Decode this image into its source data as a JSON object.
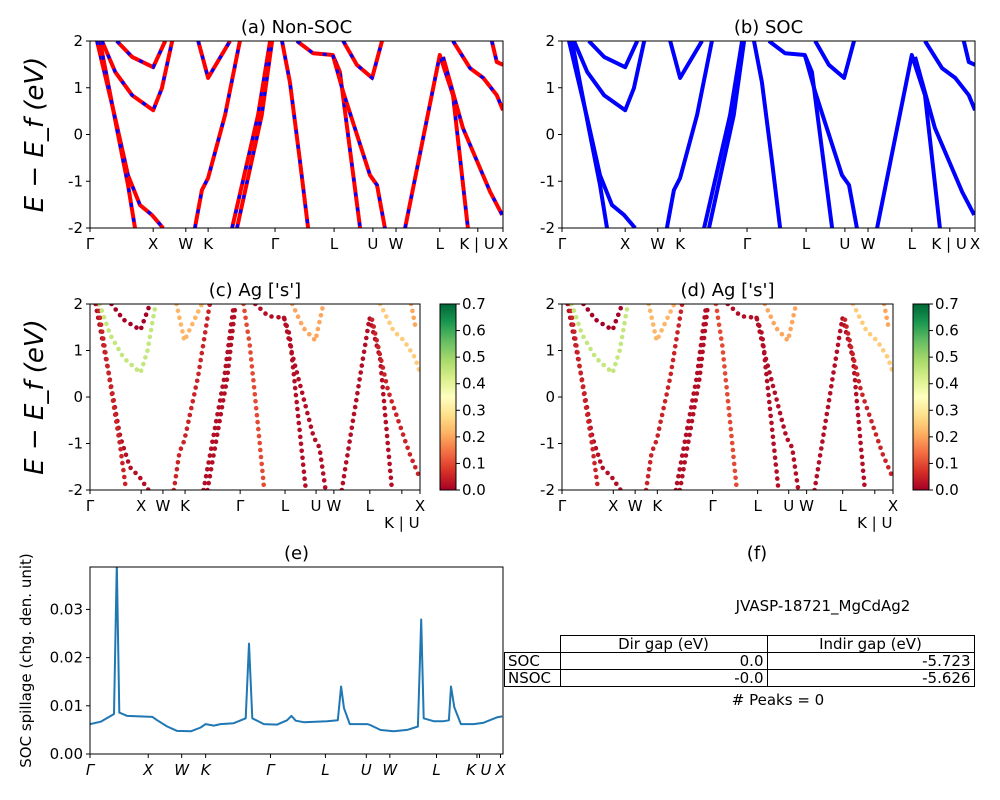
{
  "chart_data": [
    {
      "panel": "a",
      "type": "line",
      "title": "(a) Non-SOC",
      "ylabel": "E − E_f (eV)",
      "ylim": [
        -2,
        2
      ],
      "yticks": [
        "-2",
        "-1",
        "0",
        "1",
        "2"
      ],
      "ytick_values": [
        -2,
        -1,
        0,
        1,
        2
      ],
      "xticks": [
        {
          "label": "Γ",
          "k": 0
        },
        {
          "label": "X",
          "k": 0.153
        },
        {
          "label": "W",
          "k": 0.232
        },
        {
          "label": "K",
          "k": 0.286
        },
        {
          "label": "Γ",
          "k": 0.448
        },
        {
          "label": "L",
          "k": 0.591
        },
        {
          "label": "U",
          "k": 0.685
        },
        {
          "label": "W",
          "k": 0.741
        },
        {
          "label": "L",
          "k": 0.847
        },
        {
          "label": "K | U",
          "k": 0.939
        },
        {
          "label": "X",
          "k": 1.0
        }
      ],
      "colors": {
        "line": "#ff0000",
        "dash": "#0000ff"
      },
      "bands": [
        [
          [
            0.017,
            2
          ],
          [
            0.061,
            0.35
          ],
          [
            0.092,
            -0.87
          ],
          [
            0.121,
            -1.51
          ],
          [
            0.15,
            -1.72
          ],
          [
            0.177,
            -2
          ]
        ],
        [
          [
            0.024,
            2
          ],
          [
            0.068,
            -0.01
          ],
          [
            0.092,
            -1.08
          ],
          [
            0.109,
            -2
          ]
        ],
        [
          [
            0.065,
            2
          ],
          [
            0.102,
            1.66
          ],
          [
            0.153,
            1.44
          ],
          [
            0.182,
            2
          ]
        ],
        [
          [
            0.029,
            2
          ],
          [
            0.061,
            1.34
          ],
          [
            0.102,
            0.84
          ],
          [
            0.153,
            0.52
          ],
          [
            0.174,
            0.99
          ],
          [
            0.199,
            2
          ]
        ],
        [
          [
            0.254,
            -2
          ],
          [
            0.271,
            -1.19
          ],
          [
            0.286,
            -0.93
          ],
          [
            0.327,
            0.42
          ],
          [
            0.363,
            2
          ]
        ],
        [
          [
            0.262,
            2
          ],
          [
            0.286,
            1.21
          ],
          [
            0.339,
            2
          ]
        ],
        [
          [
            0.344,
            -2
          ],
          [
            0.407,
            0.42
          ],
          [
            0.436,
            2
          ]
        ],
        [
          [
            0.356,
            -2
          ],
          [
            0.416,
            0.42
          ],
          [
            0.441,
            2
          ]
        ],
        [
          [
            0.465,
            2
          ],
          [
            0.484,
            1.12
          ],
          [
            0.508,
            -0.54
          ],
          [
            0.528,
            -2
          ]
        ],
        [
          [
            0.501,
            2
          ],
          [
            0.54,
            1.74
          ],
          [
            0.588,
            1.7
          ],
          [
            0.605,
            1.34
          ],
          [
            0.654,
            -2
          ]
        ],
        [
          [
            0.588,
            1.7
          ],
          [
            0.613,
            0.91
          ],
          [
            0.678,
            -0.87
          ],
          [
            0.695,
            -1.08
          ],
          [
            0.714,
            -2
          ]
        ],
        [
          [
            0.613,
            2
          ],
          [
            0.646,
            1.49
          ],
          [
            0.683,
            1.21
          ],
          [
            0.707,
            2
          ]
        ],
        [
          [
            0.763,
            -2
          ],
          [
            0.847,
            1.7
          ],
          [
            0.879,
            0.84
          ],
          [
            0.915,
            -2
          ]
        ],
        [
          [
            0.855,
            1.66
          ],
          [
            0.903,
            0.14
          ],
          [
            0.969,
            -1.23
          ],
          [
            0.998,
            -1.72
          ]
        ],
        [
          [
            0.879,
            2
          ],
          [
            0.92,
            1.42
          ],
          [
            0.952,
            1.21
          ],
          [
            0.985,
            0.84
          ],
          [
            1.0,
            0.52
          ]
        ],
        [
          [
            0.973,
            2
          ],
          [
            0.985,
            1.55
          ],
          [
            1.0,
            1.49
          ]
        ]
      ]
    },
    {
      "panel": "b",
      "type": "line",
      "title": "(b) SOC",
      "ylim": [
        -2,
        2
      ],
      "yticks": [
        "-2",
        "-1",
        "0",
        "1",
        "2"
      ],
      "ytick_values": [
        -2,
        -1,
        0,
        1,
        2
      ],
      "xticks": [
        {
          "label": "Γ",
          "k": 0
        },
        {
          "label": "X",
          "k": 0.153
        },
        {
          "label": "W",
          "k": 0.232
        },
        {
          "label": "K",
          "k": 0.286
        },
        {
          "label": "Γ",
          "k": 0.448
        },
        {
          "label": "L",
          "k": 0.591
        },
        {
          "label": "U",
          "k": 0.685
        },
        {
          "label": "W",
          "k": 0.741
        },
        {
          "label": "L",
          "k": 0.847
        },
        {
          "label": "K | U",
          "k": 0.939
        },
        {
          "label": "X",
          "k": 1.0
        }
      ],
      "colors": {
        "line": "#0000ff"
      },
      "bands": [
        [
          [
            0.017,
            2
          ],
          [
            0.061,
            0.35
          ],
          [
            0.092,
            -0.87
          ],
          [
            0.121,
            -1.51
          ],
          [
            0.15,
            -1.72
          ],
          [
            0.177,
            -2
          ]
        ],
        [
          [
            0.024,
            2
          ],
          [
            0.068,
            -0.01
          ],
          [
            0.092,
            -1.08
          ],
          [
            0.109,
            -2
          ]
        ],
        [
          [
            0.065,
            2
          ],
          [
            0.102,
            1.66
          ],
          [
            0.153,
            1.44
          ],
          [
            0.182,
            2
          ]
        ],
        [
          [
            0.029,
            2
          ],
          [
            0.061,
            1.34
          ],
          [
            0.102,
            0.84
          ],
          [
            0.153,
            0.52
          ],
          [
            0.174,
            0.99
          ],
          [
            0.199,
            2
          ]
        ],
        [
          [
            0.254,
            -2
          ],
          [
            0.271,
            -1.19
          ],
          [
            0.286,
            -0.93
          ],
          [
            0.327,
            0.42
          ],
          [
            0.363,
            2
          ]
        ],
        [
          [
            0.262,
            2
          ],
          [
            0.286,
            1.21
          ],
          [
            0.339,
            2
          ]
        ],
        [
          [
            0.344,
            -2
          ],
          [
            0.407,
            0.42
          ],
          [
            0.436,
            2
          ]
        ],
        [
          [
            0.356,
            -2
          ],
          [
            0.416,
            0.42
          ],
          [
            0.441,
            2
          ]
        ],
        [
          [
            0.465,
            2
          ],
          [
            0.484,
            1.12
          ],
          [
            0.508,
            -0.54
          ],
          [
            0.528,
            -2
          ]
        ],
        [
          [
            0.501,
            2
          ],
          [
            0.54,
            1.74
          ],
          [
            0.588,
            1.7
          ],
          [
            0.605,
            1.34
          ],
          [
            0.654,
            -2
          ]
        ],
        [
          [
            0.588,
            1.7
          ],
          [
            0.613,
            0.91
          ],
          [
            0.678,
            -0.87
          ],
          [
            0.695,
            -1.08
          ],
          [
            0.714,
            -2
          ]
        ],
        [
          [
            0.613,
            2
          ],
          [
            0.646,
            1.49
          ],
          [
            0.683,
            1.21
          ],
          [
            0.707,
            2
          ]
        ],
        [
          [
            0.763,
            -2
          ],
          [
            0.847,
            1.7
          ],
          [
            0.879,
            0.84
          ],
          [
            0.915,
            -2
          ]
        ],
        [
          [
            0.855,
            1.66
          ],
          [
            0.903,
            0.14
          ],
          [
            0.969,
            -1.23
          ],
          [
            0.998,
            -1.72
          ]
        ],
        [
          [
            0.879,
            2
          ],
          [
            0.92,
            1.42
          ],
          [
            0.952,
            1.21
          ],
          [
            0.985,
            0.84
          ],
          [
            1.0,
            0.52
          ]
        ],
        [
          [
            0.973,
            2
          ],
          [
            0.985,
            1.55
          ],
          [
            1.0,
            1.49
          ]
        ]
      ]
    },
    {
      "panel": "c",
      "type": "scatter",
      "title": "(c)  Ag ['s']",
      "ylabel": "E − E_f (eV)",
      "ylim": [
        -2,
        2
      ],
      "yticks": [
        "-2",
        "-1",
        "0",
        "1",
        "2"
      ],
      "ytick_values": [
        -2,
        -1,
        0,
        1,
        2
      ],
      "xticks": [
        {
          "label": "Γ",
          "k": 0
        },
        {
          "label": "X",
          "k": 0.155
        },
        {
          "label": "W",
          "k": 0.221
        },
        {
          "label": "K",
          "k": 0.288
        },
        {
          "label": "Γ",
          "k": 0.455
        },
        {
          "label": "L",
          "k": 0.591
        },
        {
          "label": "U",
          "k": 0.685
        },
        {
          "label": "W",
          "k": 0.739
        },
        {
          "label": "L",
          "k": 0.848
        },
        {
          "label": "K | U",
          "k": 0.945
        },
        {
          "label": "X",
          "k": 1.0
        }
      ],
      "colormap": "RdYlGn",
      "clim": [
        0,
        0.7
      ],
      "colorbar_ticks": [
        "0.0",
        "0.1",
        "0.2",
        "0.3",
        "0.4",
        "0.5",
        "0.6",
        "0.7"
      ],
      "band_weights": [
        0.02,
        0.05,
        0.0,
        0.45,
        0.05,
        0.22,
        0.02,
        0.02,
        0.1,
        0.02,
        0.02,
        0.2,
        0.02,
        0.05,
        0.25,
        0.2
      ]
    },
    {
      "panel": "d",
      "type": "scatter",
      "title": "(d) Ag ['s']",
      "ylim": [
        -2,
        2
      ],
      "yticks": [
        "-2",
        "-1",
        "0",
        "1",
        "2"
      ],
      "ytick_values": [
        -2,
        -1,
        0,
        1,
        2
      ],
      "xticks": [
        {
          "label": "Γ",
          "k": 0
        },
        {
          "label": "X",
          "k": 0.155
        },
        {
          "label": "W",
          "k": 0.221
        },
        {
          "label": "K",
          "k": 0.288
        },
        {
          "label": "Γ",
          "k": 0.455
        },
        {
          "label": "L",
          "k": 0.591
        },
        {
          "label": "U",
          "k": 0.685
        },
        {
          "label": "W",
          "k": 0.739
        },
        {
          "label": "L",
          "k": 0.848
        },
        {
          "label": "K | U",
          "k": 0.945
        },
        {
          "label": "X",
          "k": 1.0
        }
      ],
      "colormap": "RdYlGn",
      "clim": [
        0,
        0.7
      ],
      "colorbar_ticks": [
        "0.0",
        "0.1",
        "0.2",
        "0.3",
        "0.4",
        "0.5",
        "0.6",
        "0.7"
      ],
      "band_weights": [
        0.02,
        0.05,
        0.0,
        0.45,
        0.05,
        0.22,
        0.02,
        0.02,
        0.1,
        0.02,
        0.02,
        0.2,
        0.02,
        0.05,
        0.25,
        0.2
      ]
    },
    {
      "panel": "e",
      "type": "line",
      "title": "(e)",
      "ylabel": "SOC spillage (chg. den. unit)",
      "ylim": [
        0,
        0.0388
      ],
      "yticks": [
        "0.00",
        "0.01",
        "0.02",
        "0.03"
      ],
      "ytick_values": [
        0,
        0.01,
        0.02,
        0.03
      ],
      "xticks": [
        {
          "label": "Γ",
          "k": 0
        },
        {
          "label": "X",
          "k": 0.141
        },
        {
          "label": "W",
          "k": 0.222
        },
        {
          "label": "K",
          "k": 0.28
        },
        {
          "label": "Γ",
          "k": 0.437
        },
        {
          "label": "L",
          "k": 0.57
        },
        {
          "label": "U",
          "k": 0.669
        },
        {
          "label": "W",
          "k": 0.726
        },
        {
          "label": "L",
          "k": 0.839
        },
        {
          "label": "K",
          "k": 0.937
        },
        {
          "label": "U",
          "k": 0.943
        },
        {
          "label": "X",
          "k": 0.994
        }
      ],
      "colors": {
        "line": "#1f77b4"
      },
      "x": [
        0,
        0.026,
        0.058,
        0.065,
        0.071,
        0.09,
        0.151,
        0.163,
        0.187,
        0.211,
        0.244,
        0.268,
        0.28,
        0.3,
        0.316,
        0.348,
        0.377,
        0.385,
        0.393,
        0.421,
        0.453,
        0.477,
        0.488,
        0.498,
        0.518,
        0.574,
        0.6,
        0.608,
        0.615,
        0.629,
        0.671,
        0.679,
        0.703,
        0.735,
        0.768,
        0.794,
        0.802,
        0.808,
        0.832,
        0.856,
        0.869,
        0.874,
        0.882,
        0.898,
        0.929,
        0.953,
        0.985,
        0.998
      ],
      "y": [
        0.0062,
        0.0067,
        0.0083,
        0.0395,
        0.0086,
        0.0079,
        0.0077,
        0.007,
        0.0057,
        0.0048,
        0.0047,
        0.0055,
        0.0062,
        0.0059,
        0.0062,
        0.0064,
        0.0074,
        0.0229,
        0.0074,
        0.0062,
        0.0061,
        0.007,
        0.0079,
        0.0069,
        0.0066,
        0.0068,
        0.007,
        0.014,
        0.0095,
        0.0062,
        0.0062,
        0.006,
        0.005,
        0.0047,
        0.005,
        0.0057,
        0.0279,
        0.0074,
        0.0068,
        0.0068,
        0.007,
        0.014,
        0.0097,
        0.0062,
        0.0062,
        0.0065,
        0.0076,
        0.0078
      ]
    }
  ],
  "panel_f": {
    "title": "(f)",
    "material": "JVASP-18721_MgCdAg2",
    "table": {
      "columns": [
        "Dir gap (eV)",
        "Indir gap (eV)"
      ],
      "rows": [
        {
          "label": "SOC",
          "dir": "0.0",
          "indir": "-5.723"
        },
        {
          "label": "NSOC",
          "dir": "-0.0",
          "indir": "-5.626"
        }
      ]
    },
    "peaks": "# Peaks = 0"
  }
}
